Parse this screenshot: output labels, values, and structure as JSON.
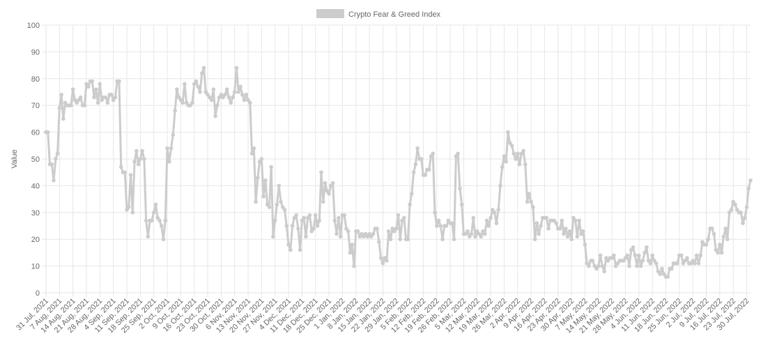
{
  "chart_data": {
    "type": "line",
    "y_label": "Value",
    "categories": [
      "31 Jul, 2021",
      null,
      null,
      null,
      null,
      null,
      null,
      "7 Aug, 2021",
      null,
      null,
      null,
      null,
      null,
      null,
      "14 Aug, 2021",
      null,
      null,
      null,
      null,
      null,
      null,
      "21 Aug, 2021",
      null,
      null,
      null,
      null,
      null,
      null,
      "28 Aug, 2021",
      null,
      null,
      null,
      null,
      null,
      null,
      "4 Sep, 2021",
      null,
      null,
      null,
      null,
      null,
      null,
      "11 Sep, 2021",
      null,
      null,
      null,
      null,
      null,
      null,
      "18 Sep, 2021",
      null,
      null,
      null,
      null,
      null,
      null,
      "25 Sep, 2021",
      null,
      null,
      null,
      null,
      null,
      null,
      "2 Oct, 2021",
      null,
      null,
      null,
      null,
      null,
      null,
      "9 Oct, 2021",
      null,
      null,
      null,
      null,
      null,
      null,
      "16 Oct, 2021",
      null,
      null,
      null,
      null,
      null,
      null,
      "23 Oct, 2021",
      null,
      null,
      null,
      null,
      null,
      null,
      "30 Oct, 2021",
      null,
      null,
      null,
      null,
      null,
      null,
      "6 Nov, 2021",
      null,
      null,
      null,
      null,
      null,
      null,
      "13 Nov, 2021",
      null,
      null,
      null,
      null,
      null,
      null,
      "20 Nov, 2021",
      null,
      null,
      null,
      null,
      null,
      null,
      "27 Nov, 2021",
      null,
      null,
      null,
      null,
      null,
      null,
      "4 Dec, 2021",
      null,
      null,
      null,
      null,
      null,
      null,
      "11 Dec, 2021",
      null,
      null,
      null,
      null,
      null,
      null,
      "18 Dec, 2021",
      null,
      null,
      null,
      null,
      null,
      null,
      "25 Dec, 2021",
      null,
      null,
      null,
      null,
      null,
      null,
      "1 Jan, 2022",
      null,
      null,
      null,
      null,
      null,
      null,
      "8 Jan, 2022",
      null,
      null,
      null,
      null,
      null,
      null,
      "15 Jan, 2022",
      null,
      null,
      null,
      null,
      null,
      null,
      "22 Jan, 2022",
      null,
      null,
      null,
      null,
      null,
      null,
      "29 Jan, 2022",
      null,
      null,
      null,
      null,
      null,
      null,
      "5 Feb, 2022",
      null,
      null,
      null,
      null,
      null,
      null,
      "12 Feb, 2022",
      null,
      null,
      null,
      null,
      null,
      null,
      "19 Feb, 2022",
      null,
      null,
      null,
      null,
      null,
      null,
      "26 Feb, 2022",
      null,
      null,
      null,
      null,
      null,
      null,
      "5 Mar, 2022",
      null,
      null,
      null,
      null,
      null,
      null,
      "12 Mar, 2022",
      null,
      null,
      null,
      null,
      null,
      null,
      "19 Mar, 2022",
      null,
      null,
      null,
      null,
      null,
      null,
      "26 Mar, 2022",
      null,
      null,
      null,
      null,
      null,
      null,
      "2 Apr, 2022",
      null,
      null,
      null,
      null,
      null,
      null,
      "9 Apr, 2022",
      null,
      null,
      null,
      null,
      null,
      null,
      "16 Apr, 2022",
      null,
      null,
      null,
      null,
      null,
      null,
      "23 Apr, 2022",
      null,
      null,
      null,
      null,
      null,
      null,
      "30 Apr, 2022",
      null,
      null,
      null,
      null,
      null,
      null,
      "7 May, 2022",
      null,
      null,
      null,
      null,
      null,
      null,
      "14 May, 2022",
      null,
      null,
      null,
      null,
      null,
      null,
      "21 May, 2022",
      null,
      null,
      null,
      null,
      null,
      null,
      "28 May, 2022",
      null,
      null,
      null,
      null,
      null,
      null,
      "4 Jun, 2022",
      null,
      null,
      null,
      null,
      null,
      null,
      "11 Jun, 2022",
      null,
      null,
      null,
      null,
      null,
      null,
      "18 Jun, 2022",
      null,
      null,
      null,
      null,
      null,
      null,
      "25 Jun, 2022",
      null,
      null,
      null,
      null,
      null,
      null,
      "2 Jul, 2022",
      null,
      null,
      null,
      null,
      null,
      null,
      "9 Jul, 2022",
      null,
      null,
      null,
      null,
      null,
      null,
      "16 Jul, 2022",
      null,
      null,
      null,
      null,
      null,
      null,
      "23 Jul, 2022",
      null,
      null,
      null,
      null,
      null,
      null,
      "30 Jul, 2022",
      null,
      null
    ],
    "series": [
      {
        "name": "Crypto Fear & Greed Index",
        "color": "#cccccc",
        "values": [
          60,
          60,
          48,
          48,
          42,
          50,
          52,
          69,
          74,
          65,
          71,
          70,
          70,
          70,
          76,
          72,
          71,
          72,
          73,
          70,
          70,
          78,
          77,
          79,
          79,
          73,
          76,
          71,
          78,
          72,
          73,
          73,
          71,
          74,
          74,
          72,
          73,
          79,
          79,
          47,
          45,
          45,
          31,
          32,
          44,
          30,
          49,
          53,
          48,
          50,
          53,
          50,
          27,
          21,
          27,
          27,
          30,
          33,
          28,
          27,
          25,
          20,
          27,
          54,
          49,
          54,
          59,
          68,
          76,
          73,
          72,
          71,
          78,
          71,
          70,
          70,
          71,
          78,
          79,
          77,
          75,
          82,
          84,
          75,
          74,
          73,
          72,
          76,
          66,
          70,
          73,
          74,
          73,
          74,
          76,
          73,
          71,
          73,
          75,
          84,
          75,
          77,
          74,
          72,
          74,
          72,
          71,
          52,
          54,
          34,
          43,
          49,
          50,
          36,
          42,
          33,
          32,
          47,
          21,
          27,
          33,
          40,
          34,
          32,
          31,
          25,
          18,
          16,
          25,
          28,
          29,
          24,
          16,
          27,
          28,
          21,
          28,
          29,
          23,
          24,
          29,
          25,
          27,
          45,
          34,
          41,
          38,
          37,
          40,
          41,
          27,
          22,
          28,
          21,
          29,
          29,
          24,
          23,
          15,
          18,
          10,
          23,
          23,
          21,
          22,
          21,
          22,
          21,
          22,
          21,
          22,
          24,
          24,
          19,
          13,
          11,
          13,
          12,
          23,
          20,
          24,
          23,
          24,
          29,
          20,
          27,
          28,
          20,
          20,
          33,
          37,
          45,
          48,
          54,
          50,
          50,
          44,
          44,
          46,
          46,
          51,
          52,
          30,
          25,
          27,
          25,
          20,
          25,
          25,
          27,
          26,
          26,
          20,
          51,
          52,
          39,
          33,
          22,
          22,
          23,
          21,
          22,
          28,
          21,
          23,
          22,
          21,
          23,
          22,
          27,
          25,
          28,
          31,
          30,
          26,
          31,
          40,
          47,
          51,
          49,
          60,
          56,
          55,
          52,
          50,
          52,
          48,
          52,
          53,
          48,
          34,
          37,
          34,
          32,
          20,
          26,
          22,
          25,
          28,
          28,
          28,
          24,
          27,
          27,
          27,
          26,
          24,
          24,
          27,
          22,
          24,
          21,
          23,
          20,
          28,
          27,
          21,
          27,
          22,
          23,
          18,
          11,
          10,
          12,
          12,
          10,
          9,
          10,
          14,
          10,
          8,
          13,
          12,
          13,
          13,
          14,
          10,
          11,
          12,
          12,
          12,
          13,
          14,
          10,
          16,
          17,
          14,
          10,
          14,
          10,
          12,
          15,
          17,
          12,
          11,
          14,
          12,
          11,
          8,
          7,
          9,
          7,
          6,
          6,
          9,
          9,
          11,
          11,
          11,
          14,
          14,
          11,
          12,
          13,
          11,
          11,
          12,
          11,
          14,
          11,
          14,
          19,
          18,
          18,
          20,
          24,
          24,
          22,
          16,
          15,
          18,
          15,
          21,
          24,
          20,
          30,
          31,
          34,
          33,
          31,
          30,
          30,
          26,
          28,
          32,
          39,
          42
        ]
      }
    ],
    "ylim": [
      0,
      100
    ],
    "yticks": [
      0,
      10,
      20,
      30,
      40,
      50,
      60,
      70,
      80,
      90,
      100
    ],
    "grid": true,
    "legend": "top"
  }
}
